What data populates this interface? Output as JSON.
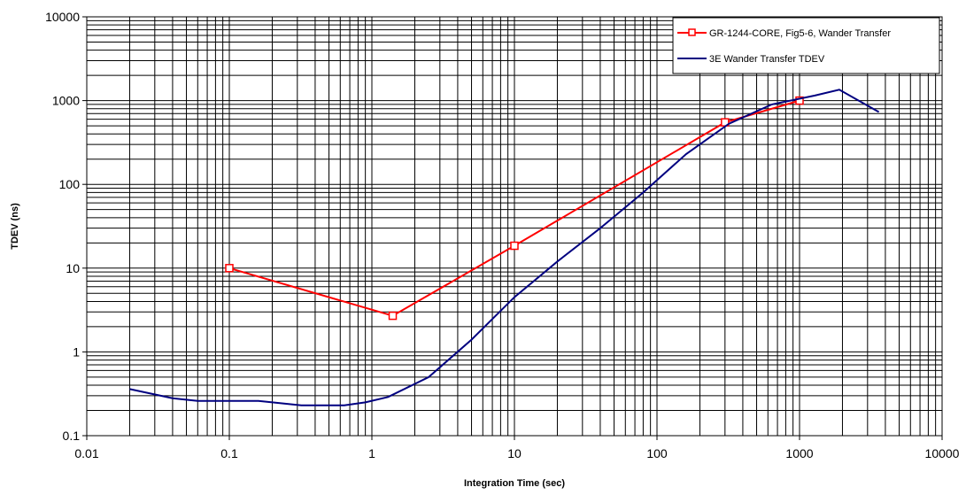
{
  "chart_data": {
    "type": "line",
    "x_scale": "log",
    "y_scale": "log",
    "xlim": [
      0.01,
      10000
    ],
    "ylim": [
      0.1,
      10000
    ],
    "xlabel": "Integration Time (sec)",
    "ylabel": "TDEV (ns)",
    "x_ticks": [
      "0.01",
      "0.1",
      "1",
      "10",
      "100",
      "1000",
      "10000"
    ],
    "y_ticks": [
      "0.1",
      "1",
      "10",
      "100",
      "1000",
      "10000"
    ],
    "grid": "on (dense minor gridlines, decade major gridlines)",
    "legend_position": "top-right",
    "series": [
      {
        "name": "GR-1244-CORE, Fig5-6, Wander Transfer",
        "color": "#ff0000",
        "marker": "square-open",
        "x": [
          0.1,
          1.4,
          10,
          300,
          1000
        ],
        "y": [
          10,
          2.7,
          18.5,
          550,
          1000
        ]
      },
      {
        "name": "3E Wander Transfer TDEV",
        "color": "#000080",
        "marker": "none",
        "x": [
          0.02,
          0.04,
          0.06,
          0.16,
          0.32,
          0.64,
          0.9,
          1.3,
          2.5,
          5,
          10,
          20,
          40,
          80,
          160,
          320,
          640,
          1280,
          1900,
          3600
        ],
        "y": [
          0.36,
          0.28,
          0.26,
          0.26,
          0.23,
          0.23,
          0.25,
          0.29,
          0.5,
          1.4,
          4.5,
          12,
          30,
          80,
          230,
          530,
          900,
          1150,
          1350,
          730
        ]
      }
    ]
  }
}
